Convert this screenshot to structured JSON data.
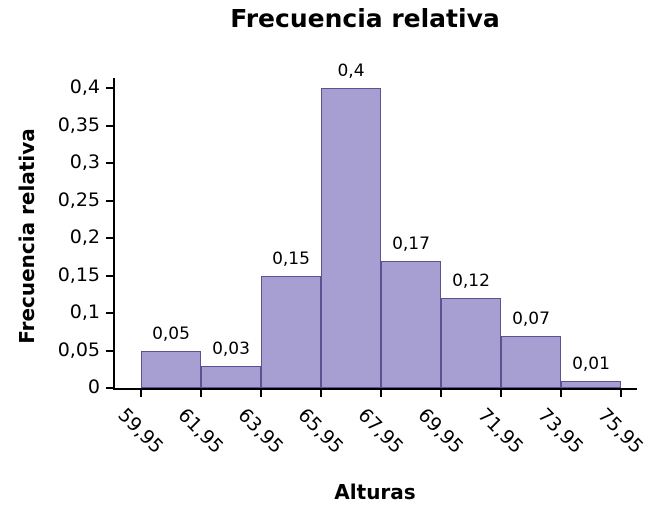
{
  "chart_data": {
    "type": "bar",
    "subtype": "histogram",
    "title": "Frecuencia relativa",
    "xlabel": "Alturas",
    "ylabel": "Frecuencia relativa",
    "x_ticks": [
      "59,95",
      "61,95",
      "63,95",
      "65,95",
      "67,95",
      "69,95",
      "71,95",
      "73,95",
      "75,95"
    ],
    "bin_edges": [
      59.95,
      61.95,
      63.95,
      65.95,
      67.95,
      69.95,
      71.95,
      73.95,
      75.95
    ],
    "values": [
      0.05,
      0.03,
      0.15,
      0.4,
      0.17,
      0.12,
      0.07,
      0.01
    ],
    "bar_labels": [
      "0,05",
      "0,03",
      "0,15",
      "0,4",
      "0,17",
      "0,12",
      "0,07",
      "0,01"
    ],
    "y_ticks": [
      {
        "value": 0,
        "label": "0"
      },
      {
        "value": 0.05,
        "label": "0,05"
      },
      {
        "value": 0.1,
        "label": "0,1"
      },
      {
        "value": 0.15,
        "label": "0,15"
      },
      {
        "value": 0.2,
        "label": "0,2"
      },
      {
        "value": 0.25,
        "label": "0,25"
      },
      {
        "value": 0.3,
        "label": "0,3"
      },
      {
        "value": 0.35,
        "label": "0,35"
      },
      {
        "value": 0.4,
        "label": "0,4"
      }
    ],
    "ylim": [
      0,
      0.4
    ],
    "grid": false,
    "legend": false,
    "bar_fill": "#a79ed2",
    "bar_border": "#5b5291",
    "axis_color": "#000000",
    "text_color": "#000000"
  }
}
